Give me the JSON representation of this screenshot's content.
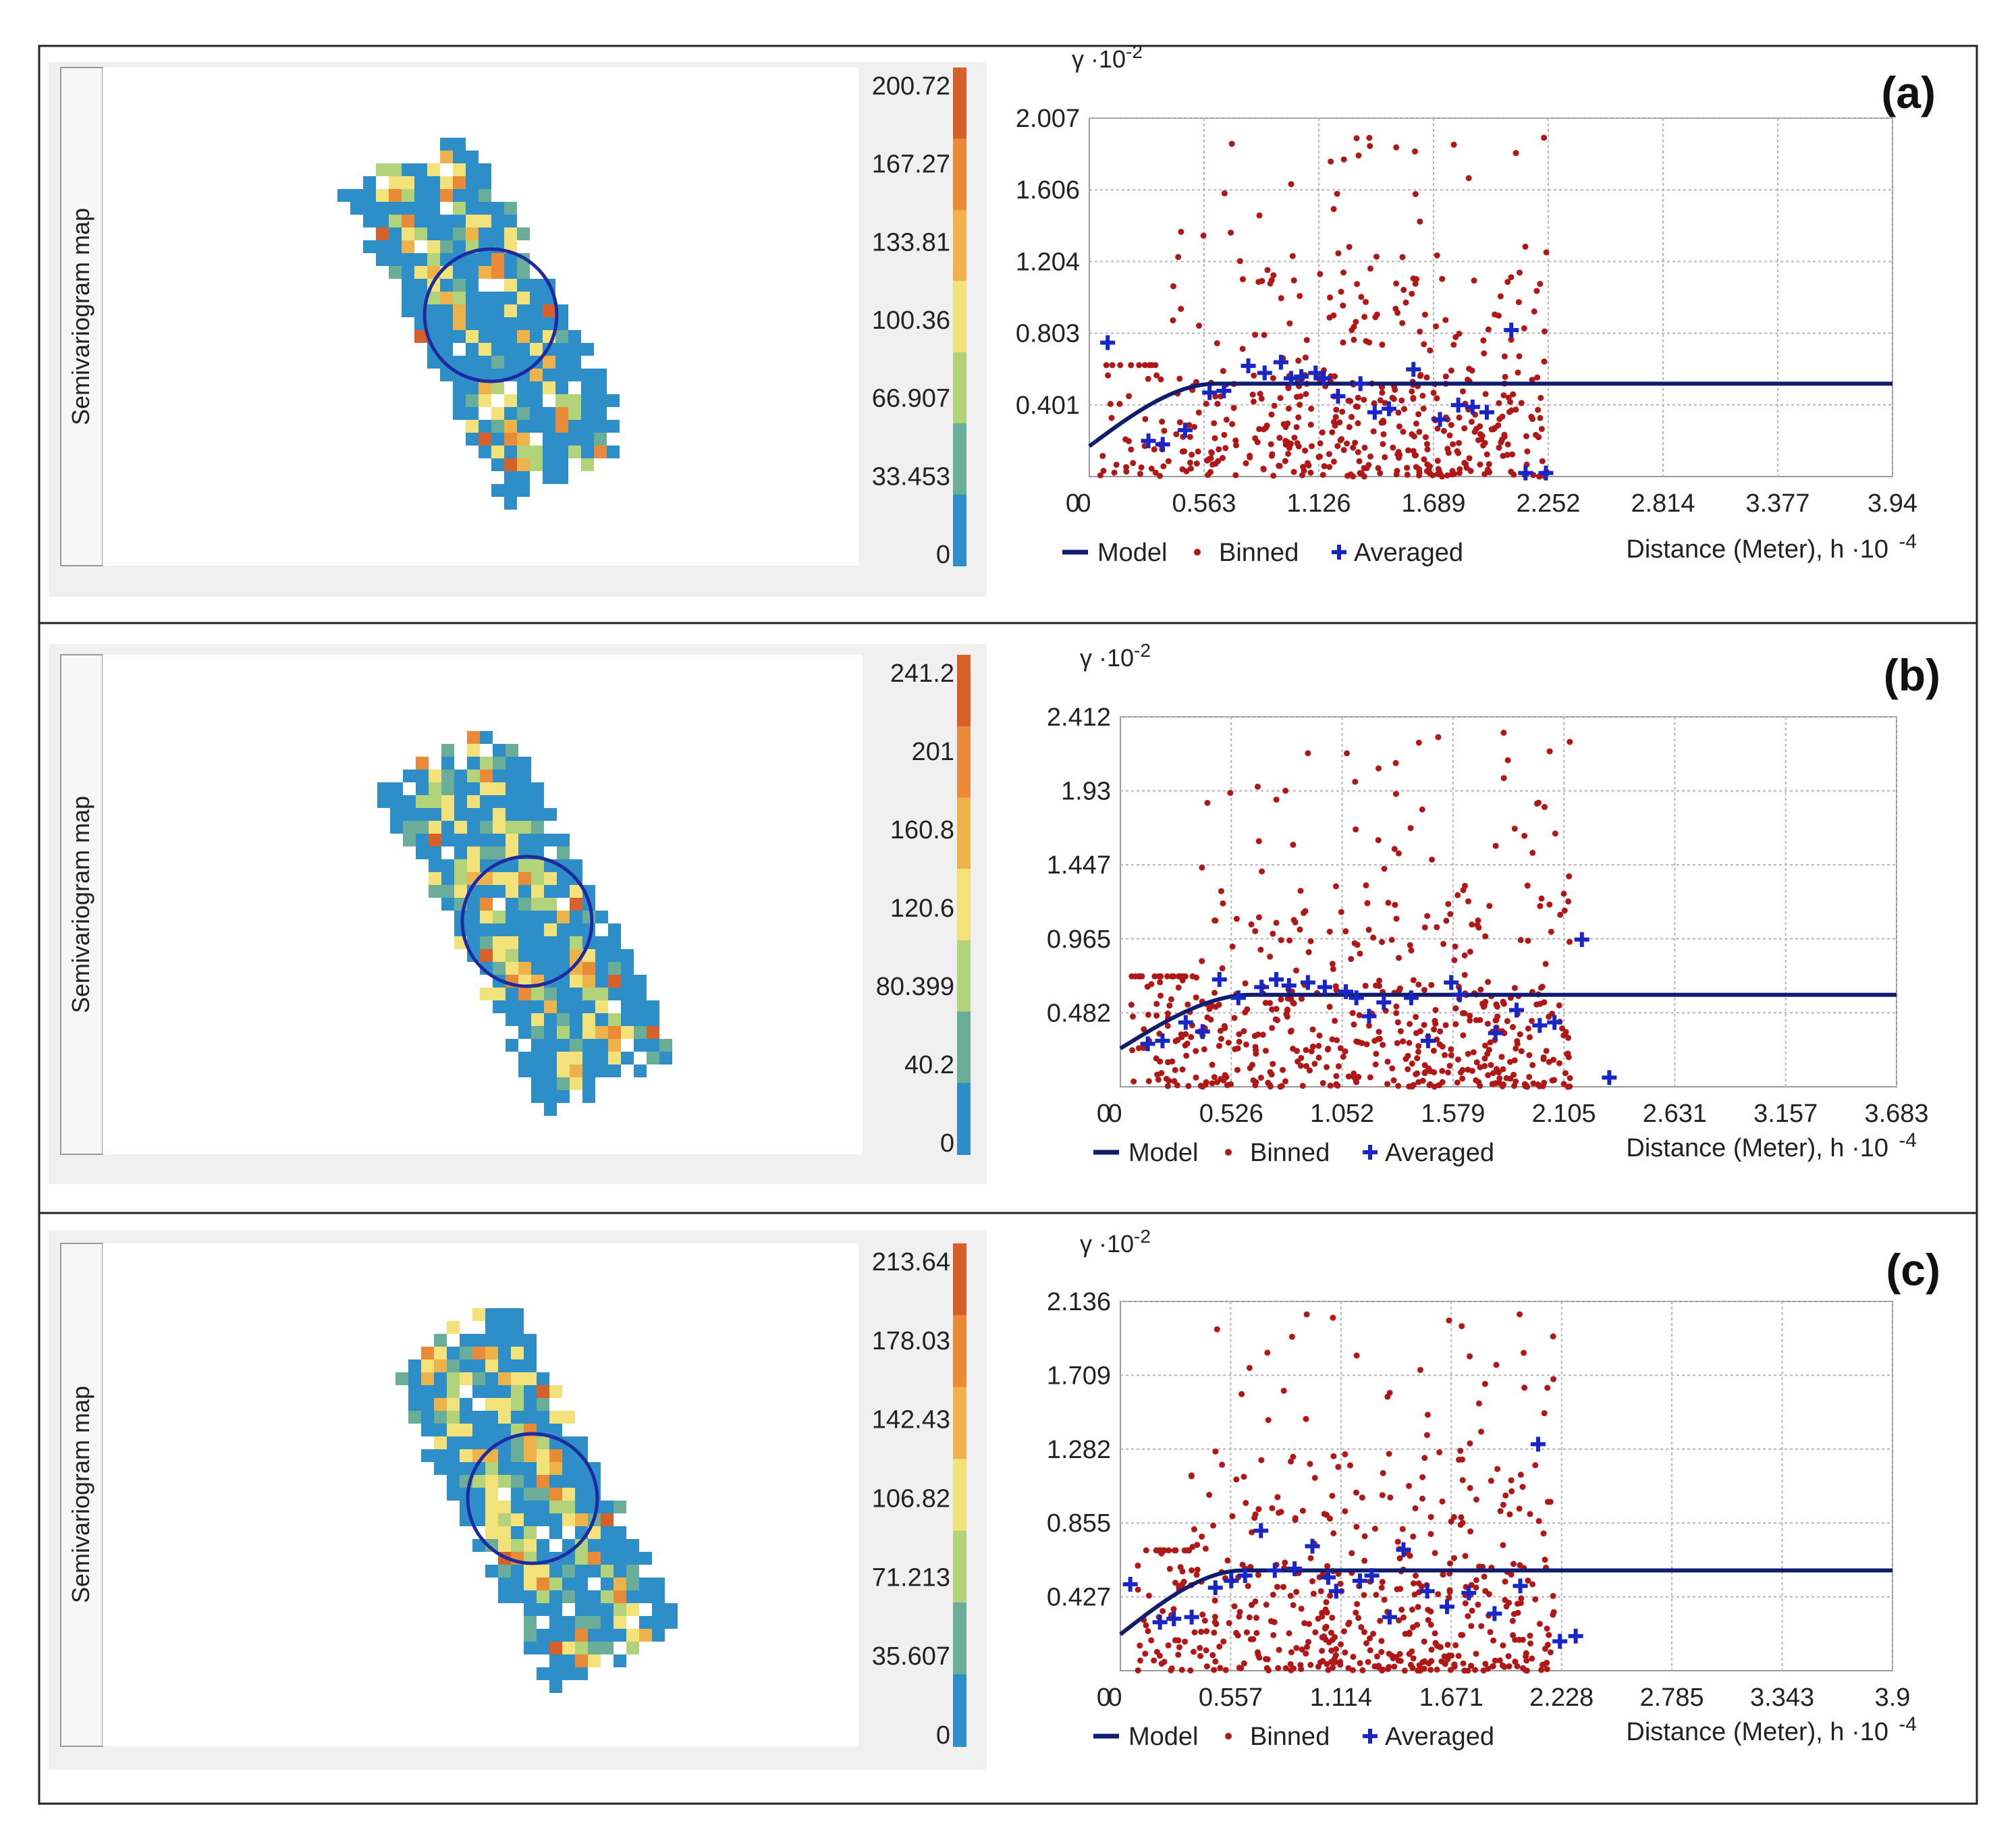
{
  "colors": {
    "ramp": [
      "#2e8fc8",
      "#6aae9a",
      "#b3d37a",
      "#f3e27a",
      "#eeb24a",
      "#e88a38",
      "#d5602a"
    ],
    "model_line": "#101c6e",
    "binned": "#b01818",
    "averaged": "#1726c4",
    "circle": "#1e2aa0",
    "grid": "#b4b4b4",
    "frame": "#222222",
    "map_bg": "#f0f0f0"
  },
  "panels": [
    {
      "label": "(a)",
      "map_label": "Semivariogram map",
      "colorbar_ticks": [
        "200.72",
        "167.27",
        "133.81",
        "100.36",
        "66.907",
        "33.453",
        "0"
      ],
      "chart_data": {
        "type": "scatter",
        "title": "",
        "ylabel": "γ ·10",
        "ylabel_exp": "-2",
        "xlabel": "Distance (Meter), h ·10",
        "xlabel_exp": "-4",
        "xticks": [
          "0",
          "0.563",
          "1.126",
          "1.689",
          "2.252",
          "2.814",
          "3.377",
          "3.94"
        ],
        "yticks": [
          "0",
          "0.401",
          "0.803",
          "1.204",
          "1.606",
          "2.007"
        ],
        "xlim": [
          0,
          3.94
        ],
        "ylim": [
          0,
          2.007
        ],
        "legend": {
          "model": "Model",
          "binned": "Binned",
          "averaged": "Averaged"
        },
        "model": {
          "nugget": 0.17,
          "sill": 0.52,
          "range": 0.62
        },
        "binned_seed": 11,
        "binned_count": 520,
        "binned_xmax": 2.25,
        "averaged": [
          [
            0.09,
            0.75
          ],
          [
            0.29,
            0.2
          ],
          [
            0.36,
            0.18
          ],
          [
            0.47,
            0.26
          ],
          [
            0.59,
            0.47
          ],
          [
            0.66,
            0.48
          ],
          [
            0.78,
            0.62
          ],
          [
            0.86,
            0.58
          ],
          [
            0.94,
            0.64
          ],
          [
            0.99,
            0.55
          ],
          [
            1.04,
            0.56
          ],
          [
            1.11,
            0.58
          ],
          [
            1.15,
            0.55
          ],
          [
            1.22,
            0.45
          ],
          [
            1.33,
            0.52
          ],
          [
            1.4,
            0.36
          ],
          [
            1.47,
            0.38
          ],
          [
            1.59,
            0.6
          ],
          [
            1.72,
            0.32
          ],
          [
            1.81,
            0.4
          ],
          [
            1.88,
            0.39
          ],
          [
            1.95,
            0.36
          ],
          [
            2.07,
            0.82
          ],
          [
            2.14,
            0.02
          ],
          [
            2.24,
            0.02
          ]
        ]
      }
    },
    {
      "label": "(b)",
      "map_label": "Semivariogram map",
      "colorbar_ticks": [
        "241.2",
        "201",
        "160.8",
        "120.6",
        "80.399",
        "40.2",
        "0"
      ],
      "chart_data": {
        "type": "scatter",
        "title": "",
        "ylabel": "γ ·10",
        "ylabel_exp": "-2",
        "xlabel": "Distance (Meter), h ·10",
        "xlabel_exp": "-4",
        "xticks": [
          "0",
          "0.526",
          "1.052",
          "1.579",
          "2.105",
          "2.631",
          "3.157",
          "3.683"
        ],
        "yticks": [
          "0",
          "0.482",
          "0.965",
          "1.447",
          "1.93",
          "2.412"
        ],
        "xlim": [
          0,
          3.683
        ],
        "ylim": [
          0,
          2.412
        ],
        "legend": {
          "model": "Model",
          "binned": "Binned",
          "averaged": "Averaged"
        },
        "model": {
          "nugget": 0.25,
          "sill": 0.6,
          "range": 0.62
        },
        "binned_seed": 23,
        "binned_count": 560,
        "binned_xmax": 2.15,
        "averaged": [
          [
            0.13,
            0.28
          ],
          [
            0.2,
            0.3
          ],
          [
            0.31,
            0.42
          ],
          [
            0.39,
            0.36
          ],
          [
            0.47,
            0.7
          ],
          [
            0.56,
            0.58
          ],
          [
            0.67,
            0.65
          ],
          [
            0.74,
            0.7
          ],
          [
            0.8,
            0.66
          ],
          [
            0.89,
            0.68
          ],
          [
            0.97,
            0.65
          ],
          [
            1.07,
            0.62
          ],
          [
            1.12,
            0.58
          ],
          [
            1.18,
            0.46
          ],
          [
            1.25,
            0.55
          ],
          [
            1.38,
            0.58
          ],
          [
            1.46,
            0.3
          ],
          [
            1.57,
            0.68
          ],
          [
            1.61,
            0.6
          ],
          [
            1.78,
            0.35
          ],
          [
            1.88,
            0.5
          ],
          [
            1.99,
            0.4
          ],
          [
            2.06,
            0.42
          ],
          [
            2.19,
            0.96
          ],
          [
            2.32,
            0.06
          ]
        ]
      }
    },
    {
      "label": "(c)",
      "map_label": "Semivariogram map",
      "colorbar_ticks": [
        "213.64",
        "178.03",
        "142.43",
        "106.82",
        "71.213",
        "35.607",
        "0"
      ],
      "chart_data": {
        "type": "scatter",
        "title": "",
        "ylabel": "γ ·10",
        "ylabel_exp": "-2",
        "xlabel": "Distance (Meter), h ·10",
        "xlabel_exp": "-4",
        "xticks": [
          "0",
          "0.557",
          "1.114",
          "1.671",
          "2.228",
          "2.785",
          "3.343",
          "3.9"
        ],
        "yticks": [
          "0",
          "0.427",
          "0.855",
          "1.282",
          "1.709",
          "2.136"
        ],
        "xlim": [
          0,
          3.9
        ],
        "ylim": [
          0,
          2.136
        ],
        "legend": {
          "model": "Model",
          "binned": "Binned",
          "averaged": "Averaged"
        },
        "model": {
          "nugget": 0.21,
          "sill": 0.58,
          "range": 0.62
        },
        "binned_seed": 37,
        "binned_count": 540,
        "binned_xmax": 2.2,
        "averaged": [
          [
            0.05,
            0.5
          ],
          [
            0.2,
            0.28
          ],
          [
            0.27,
            0.3
          ],
          [
            0.36,
            0.31
          ],
          [
            0.48,
            0.48
          ],
          [
            0.56,
            0.52
          ],
          [
            0.63,
            0.55
          ],
          [
            0.71,
            0.81
          ],
          [
            0.78,
            0.58
          ],
          [
            0.88,
            0.59
          ],
          [
            0.97,
            0.72
          ],
          [
            1.05,
            0.54
          ],
          [
            1.09,
            0.46
          ],
          [
            1.21,
            0.52
          ],
          [
            1.27,
            0.55
          ],
          [
            1.36,
            0.31
          ],
          [
            1.43,
            0.7
          ],
          [
            1.55,
            0.46
          ],
          [
            1.65,
            0.37
          ],
          [
            1.76,
            0.45
          ],
          [
            1.89,
            0.33
          ],
          [
            2.02,
            0.49
          ],
          [
            2.11,
            1.31
          ],
          [
            2.22,
            0.17
          ],
          [
            2.3,
            0.2
          ]
        ]
      }
    }
  ]
}
